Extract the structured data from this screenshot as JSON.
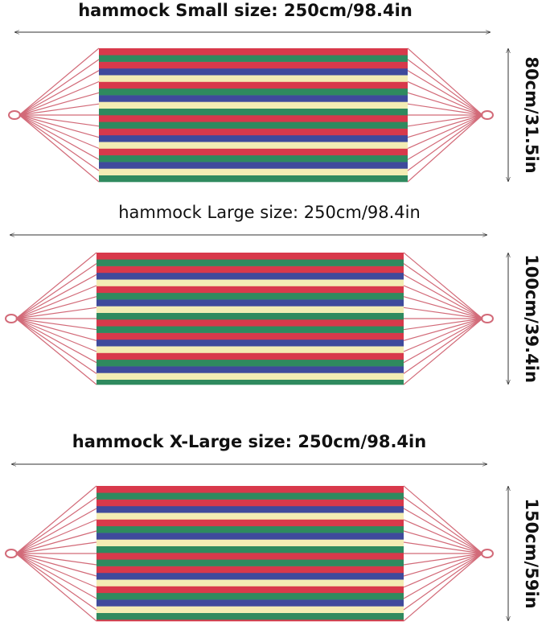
{
  "hammocks": [
    {
      "width_label": "hammock Small size: 250cm/98.4in",
      "height_label": "80cm/31.5in"
    },
    {
      "width_label": "hammock Large size: 250cm/98.4in",
      "height_label": "100cm/39.4in"
    },
    {
      "width_label": "hammock X-Large size: 250cm/98.4in",
      "height_label": "150cm/59in"
    }
  ]
}
